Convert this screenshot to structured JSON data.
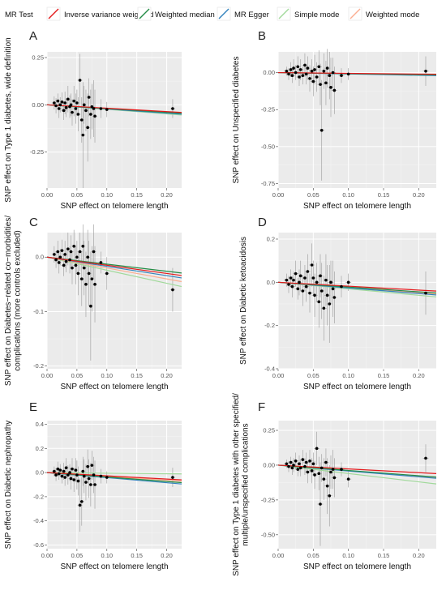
{
  "legend": {
    "title": "MR Test",
    "items": [
      {
        "label": "Inverse variance weighted",
        "color": "#e31a1c"
      },
      {
        "label": "Weighted median",
        "color": "#238b45"
      },
      {
        "label": "MR Egger",
        "color": "#3182bd"
      },
      {
        "label": "Simple mode",
        "color": "#a1d99b"
      },
      {
        "label": "Weighted mode",
        "color": "#fcae91"
      }
    ]
  },
  "chart_data": [
    {
      "type": "scatter",
      "panel": "A",
      "xlabel": "SNP effect on telomere length",
      "ylabel": "SNP effect on Type 1 diabetes, wide definition",
      "xlim": [
        0,
        0.225
      ],
      "ylim": [
        -0.44,
        0.28
      ],
      "xticks": [
        0.0,
        0.05,
        0.1,
        0.15,
        0.2
      ],
      "yticks": [
        -0.25,
        0.0,
        0.25
      ],
      "ytick_labels": [
        "-0.25",
        "0.00",
        "0.25"
      ],
      "lines": {
        "ivw": -0.18,
        "median": -0.2,
        "egger": -0.22,
        "simple": -0.24,
        "mode": -0.19
      },
      "points": [
        [
          0.012,
          0.01,
          0.035
        ],
        [
          0.015,
          -0.005,
          0.04
        ],
        [
          0.018,
          0.02,
          0.04
        ],
        [
          0.02,
          -0.02,
          0.05
        ],
        [
          0.022,
          0.0,
          0.04
        ],
        [
          0.025,
          0.015,
          0.05
        ],
        [
          0.028,
          -0.03,
          0.05
        ],
        [
          0.03,
          0.01,
          0.06
        ],
        [
          0.032,
          -0.015,
          0.05
        ],
        [
          0.035,
          0.03,
          0.07
        ],
        [
          0.038,
          -0.01,
          0.06
        ],
        [
          0.04,
          0.0,
          0.06
        ],
        [
          0.042,
          -0.04,
          0.07
        ],
        [
          0.045,
          0.02,
          0.08
        ],
        [
          0.048,
          -0.02,
          0.08
        ],
        [
          0.05,
          0.01,
          0.07
        ],
        [
          0.052,
          -0.05,
          0.09
        ],
        [
          0.055,
          0.13,
          0.14
        ],
        [
          0.058,
          -0.08,
          0.12
        ],
        [
          0.06,
          -0.16,
          0.28
        ],
        [
          0.062,
          0.0,
          0.1
        ],
        [
          0.065,
          -0.03,
          0.11
        ],
        [
          0.068,
          -0.12,
          0.18
        ],
        [
          0.07,
          0.04,
          0.1
        ],
        [
          0.073,
          -0.05,
          0.13
        ],
        [
          0.075,
          -0.01,
          0.12
        ],
        [
          0.078,
          -0.02,
          0.15
        ],
        [
          0.08,
          -0.06,
          0.14
        ],
        [
          0.09,
          -0.02,
          0.05
        ],
        [
          0.1,
          -0.025,
          0.04
        ],
        [
          0.21,
          -0.02,
          0.05
        ]
      ]
    },
    {
      "type": "scatter",
      "panel": "B",
      "xlabel": "SNP effect on telomere length",
      "ylabel": "SNP effect on Unspecified diabetes",
      "xlim": [
        0,
        0.225
      ],
      "ylim": [
        -0.78,
        0.14
      ],
      "xticks": [
        0.0,
        0.05,
        0.1,
        0.15,
        0.2
      ],
      "yticks": [
        -0.75,
        -0.5,
        -0.25,
        0.0
      ],
      "ytick_labels": [
        "-0.75",
        "-0.50",
        "-0.25",
        "0.00"
      ],
      "lines": {
        "ivw": -0.05,
        "median": -0.07,
        "egger": -0.09,
        "simple": -0.08,
        "mode": -0.06
      },
      "points": [
        [
          0.012,
          0.01,
          0.03
        ],
        [
          0.015,
          -0.01,
          0.04
        ],
        [
          0.018,
          0.02,
          0.05
        ],
        [
          0.02,
          -0.02,
          0.05
        ],
        [
          0.022,
          0.03,
          0.06
        ],
        [
          0.025,
          0.0,
          0.05
        ],
        [
          0.028,
          0.04,
          0.07
        ],
        [
          0.03,
          -0.03,
          0.06
        ],
        [
          0.032,
          0.02,
          0.07
        ],
        [
          0.035,
          -0.02,
          0.06
        ],
        [
          0.038,
          0.05,
          0.08
        ],
        [
          0.04,
          -0.01,
          0.07
        ],
        [
          0.042,
          0.03,
          0.08
        ],
        [
          0.045,
          -0.04,
          0.09
        ],
        [
          0.048,
          0.01,
          0.08
        ],
        [
          0.05,
          -0.06,
          0.1
        ],
        [
          0.052,
          0.02,
          0.1
        ],
        [
          0.055,
          -0.03,
          0.1
        ],
        [
          0.058,
          0.04,
          0.11
        ],
        [
          0.06,
          -0.08,
          0.14
        ],
        [
          0.062,
          -0.39,
          0.34
        ],
        [
          0.065,
          0.01,
          0.12
        ],
        [
          0.068,
          -0.07,
          0.15
        ],
        [
          0.07,
          0.03,
          0.13
        ],
        [
          0.073,
          -0.02,
          0.16
        ],
        [
          0.075,
          -0.1,
          0.2
        ],
        [
          0.078,
          0.0,
          0.1
        ],
        [
          0.08,
          -0.12,
          0.16
        ],
        [
          0.09,
          -0.02,
          0.05
        ],
        [
          0.1,
          -0.01,
          0.04
        ],
        [
          0.21,
          0.01,
          0.1
        ]
      ]
    },
    {
      "type": "scatter",
      "panel": "C",
      "xlabel": "SNP effect on telomere length",
      "ylabel": "SNP effect on Diabetes−related co−morbidities/ complications (more controls excluded)",
      "xlim": [
        0,
        0.225
      ],
      "ylim": [
        -0.205,
        0.045
      ],
      "xticks": [
        0.0,
        0.05,
        0.1,
        0.15,
        0.2
      ],
      "yticks": [
        -0.2,
        -0.1,
        0.0
      ],
      "ytick_labels": [
        "-0.2",
        "-0.1",
        "0.0"
      ],
      "lines": {
        "ivw": -0.15,
        "median": -0.13,
        "egger": -0.17,
        "simple": -0.24,
        "mode": -0.2
      },
      "points": [
        [
          0.012,
          0.005,
          0.015
        ],
        [
          0.015,
          -0.005,
          0.015
        ],
        [
          0.018,
          0.01,
          0.02
        ],
        [
          0.02,
          -0.01,
          0.02
        ],
        [
          0.022,
          0.0,
          0.015
        ],
        [
          0.025,
          0.012,
          0.02
        ],
        [
          0.028,
          -0.015,
          0.02
        ],
        [
          0.03,
          0.005,
          0.025
        ],
        [
          0.032,
          -0.008,
          0.02
        ],
        [
          0.035,
          0.015,
          0.03
        ],
        [
          0.038,
          -0.005,
          0.025
        ],
        [
          0.04,
          0.01,
          0.03
        ],
        [
          0.042,
          -0.02,
          0.03
        ],
        [
          0.045,
          0.02,
          0.03
        ],
        [
          0.048,
          -0.015,
          0.035
        ],
        [
          0.05,
          0.0,
          0.03
        ],
        [
          0.052,
          -0.03,
          0.04
        ],
        [
          0.055,
          0.01,
          0.035
        ],
        [
          0.058,
          -0.04,
          0.05
        ],
        [
          0.06,
          0.02,
          0.04
        ],
        [
          0.062,
          -0.02,
          0.05
        ],
        [
          0.065,
          -0.05,
          0.06
        ],
        [
          0.068,
          0.0,
          0.05
        ],
        [
          0.07,
          -0.03,
          0.06
        ],
        [
          0.073,
          -0.09,
          0.1
        ],
        [
          0.075,
          -0.04,
          0.06
        ],
        [
          0.078,
          0.01,
          0.05
        ],
        [
          0.08,
          -0.05,
          0.07
        ],
        [
          0.09,
          -0.01,
          0.02
        ],
        [
          0.1,
          -0.03,
          0.03
        ],
        [
          0.21,
          -0.06,
          0.04
        ]
      ]
    },
    {
      "type": "scatter",
      "panel": "D",
      "xlabel": "SNP effect on telomere length",
      "ylabel": "SNP effect on Diabetic ketoacidosis",
      "xlim": [
        0,
        0.225
      ],
      "ylim": [
        -0.4,
        0.23
      ],
      "xticks": [
        0.0,
        0.05,
        0.1,
        0.15,
        0.2
      ],
      "yticks": [
        -0.4,
        -0.2,
        0.0,
        0.2
      ],
      "ytick_labels": [
        "-0.4",
        "-0.2",
        "0.0",
        "0.2"
      ],
      "lines": {
        "ivw": -0.18,
        "median": -0.22,
        "egger": -0.26,
        "simple": -0.3,
        "mode": -0.24
      },
      "points": [
        [
          0.012,
          0.01,
          0.03
        ],
        [
          0.015,
          -0.01,
          0.04
        ],
        [
          0.018,
          0.02,
          0.04
        ],
        [
          0.02,
          -0.02,
          0.05
        ],
        [
          0.022,
          0.01,
          0.04
        ],
        [
          0.025,
          0.04,
          0.06
        ],
        [
          0.028,
          -0.03,
          0.05
        ],
        [
          0.03,
          0.0,
          0.06
        ],
        [
          0.032,
          0.03,
          0.07
        ],
        [
          0.035,
          -0.04,
          0.07
        ],
        [
          0.038,
          0.02,
          0.06
        ],
        [
          0.04,
          -0.02,
          0.07
        ],
        [
          0.042,
          0.05,
          0.08
        ],
        [
          0.045,
          -0.05,
          0.09
        ],
        [
          0.048,
          0.08,
          0.1
        ],
        [
          0.05,
          0.02,
          0.08
        ],
        [
          0.052,
          -0.06,
          0.1
        ],
        [
          0.055,
          0.0,
          0.09
        ],
        [
          0.058,
          -0.09,
          0.12
        ],
        [
          0.06,
          0.03,
          0.1
        ],
        [
          0.062,
          -0.04,
          0.13
        ],
        [
          0.065,
          -0.12,
          0.15
        ],
        [
          0.068,
          0.01,
          0.12
        ],
        [
          0.07,
          -0.06,
          0.14
        ],
        [
          0.073,
          -0.1,
          0.18
        ],
        [
          0.075,
          0.0,
          0.1
        ],
        [
          0.078,
          -0.03,
          0.13
        ],
        [
          0.08,
          -0.07,
          0.12
        ],
        [
          0.09,
          -0.02,
          0.05
        ],
        [
          0.1,
          0.0,
          0.04
        ],
        [
          0.21,
          -0.05,
          0.1
        ]
      ]
    },
    {
      "type": "scatter",
      "panel": "E",
      "xlabel": "SNP effect on telomere length",
      "ylabel": "SNP effect on Diabetic nephropathy",
      "xlim": [
        0,
        0.225
      ],
      "ylim": [
        -0.63,
        0.43
      ],
      "xticks": [
        0.0,
        0.05,
        0.1,
        0.15,
        0.2
      ],
      "yticks": [
        -0.6,
        -0.4,
        -0.2,
        0.0,
        0.2,
        0.4
      ],
      "ytick_labels": [
        "-0.6",
        "-0.4",
        "-0.2",
        "0.0",
        "0.2",
        "0.4"
      ],
      "lines": {
        "ivw": -0.27,
        "median": -0.37,
        "egger": -0.42,
        "simple": -0.05,
        "mode": -0.32
      },
      "points": [
        [
          0.012,
          0.01,
          0.04
        ],
        [
          0.015,
          -0.02,
          0.05
        ],
        [
          0.018,
          0.03,
          0.06
        ],
        [
          0.02,
          -0.01,
          0.05
        ],
        [
          0.022,
          0.02,
          0.05
        ],
        [
          0.025,
          -0.03,
          0.06
        ],
        [
          0.028,
          0.01,
          0.07
        ],
        [
          0.03,
          -0.04,
          0.07
        ],
        [
          0.032,
          0.04,
          0.08
        ],
        [
          0.035,
          -0.02,
          0.08
        ],
        [
          0.038,
          0.0,
          0.07
        ],
        [
          0.04,
          -0.05,
          0.09
        ],
        [
          0.042,
          0.03,
          0.09
        ],
        [
          0.045,
          -0.06,
          0.1
        ],
        [
          0.048,
          0.02,
          0.1
        ],
        [
          0.05,
          -0.02,
          0.12
        ],
        [
          0.052,
          -0.07,
          0.12
        ],
        [
          0.055,
          -0.27,
          0.22
        ],
        [
          0.058,
          -0.24,
          0.2
        ],
        [
          0.06,
          0.01,
          0.12
        ],
        [
          0.062,
          -0.03,
          0.14
        ],
        [
          0.065,
          -0.08,
          0.15
        ],
        [
          0.068,
          0.05,
          0.14
        ],
        [
          0.07,
          -0.05,
          0.16
        ],
        [
          0.073,
          -0.1,
          0.18
        ],
        [
          0.075,
          0.06,
          0.12
        ],
        [
          0.078,
          -0.02,
          0.15
        ],
        [
          0.08,
          -0.1,
          0.2
        ],
        [
          0.09,
          -0.03,
          0.06
        ],
        [
          0.1,
          -0.04,
          0.05
        ],
        [
          0.21,
          -0.04,
          0.08
        ]
      ]
    },
    {
      "type": "scatter",
      "panel": "F",
      "xlabel": "SNP effect on telomere length",
      "ylabel": "SNP effect on Type 1 diabetes with other specified/ multiple/unspecified complications",
      "xlim": [
        0,
        0.225
      ],
      "ylim": [
        -0.6,
        0.32
      ],
      "xticks": [
        0.0,
        0.05,
        0.1,
        0.15,
        0.2
      ],
      "yticks": [
        -0.5,
        -0.25,
        0.0,
        0.25
      ],
      "ytick_labels": [
        "-0.50",
        "-0.25",
        "0.00",
        "0.25"
      ],
      "lines": {
        "ivw": -0.27,
        "median": -0.38,
        "egger": -0.42,
        "simple": -0.6,
        "mode": -0.4
      },
      "points": [
        [
          0.012,
          0.01,
          0.03
        ],
        [
          0.015,
          -0.01,
          0.04
        ],
        [
          0.018,
          0.02,
          0.04
        ],
        [
          0.02,
          -0.02,
          0.05
        ],
        [
          0.022,
          0.0,
          0.05
        ],
        [
          0.025,
          0.03,
          0.06
        ],
        [
          0.028,
          -0.03,
          0.05
        ],
        [
          0.03,
          0.01,
          0.06
        ],
        [
          0.032,
          -0.02,
          0.06
        ],
        [
          0.035,
          0.04,
          0.07
        ],
        [
          0.038,
          -0.01,
          0.06
        ],
        [
          0.04,
          0.02,
          0.07
        ],
        [
          0.042,
          -0.05,
          0.08
        ],
        [
          0.045,
          0.03,
          0.08
        ],
        [
          0.048,
          -0.04,
          0.09
        ],
        [
          0.05,
          0.01,
          0.08
        ],
        [
          0.052,
          -0.07,
          0.1
        ],
        [
          0.055,
          0.12,
          0.12
        ],
        [
          0.058,
          -0.06,
          0.12
        ],
        [
          0.06,
          -0.28,
          0.3
        ],
        [
          0.062,
          -0.02,
          0.1
        ],
        [
          0.065,
          -0.1,
          0.15
        ],
        [
          0.068,
          0.02,
          0.1
        ],
        [
          0.07,
          -0.15,
          0.2
        ],
        [
          0.073,
          -0.22,
          0.22
        ],
        [
          0.075,
          -0.05,
          0.12
        ],
        [
          0.078,
          -0.03,
          0.14
        ],
        [
          0.08,
          -0.09,
          0.14
        ],
        [
          0.09,
          -0.03,
          0.05
        ],
        [
          0.1,
          -0.1,
          0.06
        ],
        [
          0.21,
          0.05,
          0.1
        ]
      ]
    }
  ]
}
